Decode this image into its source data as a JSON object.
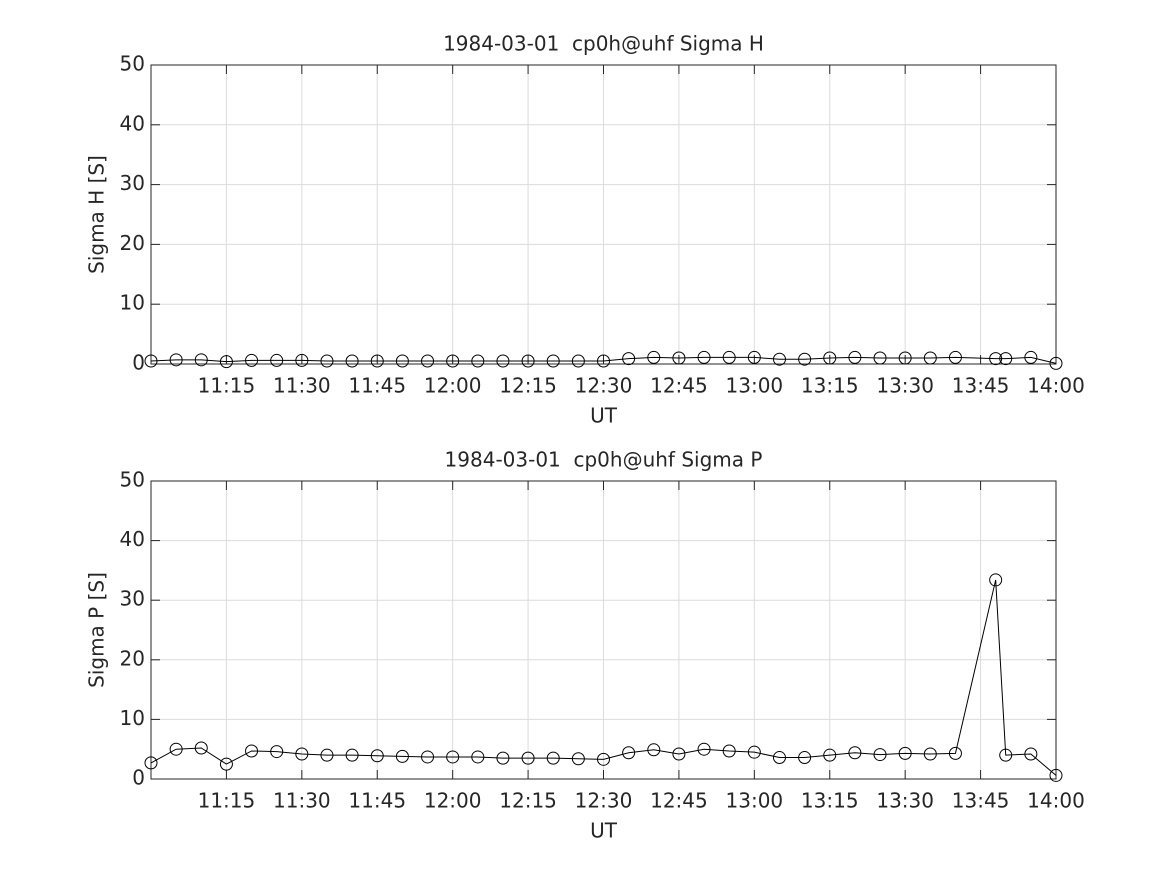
{
  "chart_data": [
    {
      "type": "line",
      "title": "1984-03-01  cp0h@uhf Sigma H",
      "xlabel": "UT",
      "ylabel": "Sigma H [S]",
      "color": "#000000",
      "grid": true,
      "x": [
        "11:00",
        "11:05",
        "11:10",
        "11:15",
        "11:20",
        "11:25",
        "11:30",
        "11:35",
        "11:40",
        "11:45",
        "11:50",
        "11:55",
        "12:00",
        "12:05",
        "12:10",
        "12:15",
        "12:20",
        "12:25",
        "12:30",
        "12:35",
        "12:40",
        "12:45",
        "12:50",
        "12:55",
        "13:00",
        "13:05",
        "13:10",
        "13:15",
        "13:20",
        "13:25",
        "13:30",
        "13:35",
        "13:40",
        "13:48",
        "13:50",
        "13:55",
        "14:00"
      ],
      "values": [
        0.5,
        0.7,
        0.7,
        0.4,
        0.6,
        0.6,
        0.6,
        0.5,
        0.5,
        0.5,
        0.5,
        0.5,
        0.5,
        0.5,
        0.5,
        0.5,
        0.5,
        0.5,
        0.5,
        0.9,
        1.1,
        1.0,
        1.1,
        1.1,
        1.1,
        0.8,
        0.8,
        1.0,
        1.1,
        1.0,
        1.0,
        1.0,
        1.1,
        0.9,
        0.9,
        1.1,
        0.1
      ],
      "xlim": [
        "11:00",
        "14:00"
      ],
      "xticks": [
        "11:15",
        "11:30",
        "11:45",
        "12:00",
        "12:15",
        "12:30",
        "12:45",
        "13:00",
        "13:15",
        "13:30",
        "13:45",
        "14:00"
      ],
      "ylim": [
        0,
        50
      ],
      "yticks": [
        0,
        10,
        20,
        30,
        40,
        50
      ]
    },
    {
      "type": "line",
      "title": "1984-03-01  cp0h@uhf Sigma P",
      "xlabel": "UT",
      "ylabel": "Sigma P [S]",
      "color": "#000000",
      "grid": true,
      "x": [
        "11:00",
        "11:05",
        "11:10",
        "11:15",
        "11:20",
        "11:25",
        "11:30",
        "11:35",
        "11:40",
        "11:45",
        "11:50",
        "11:55",
        "12:00",
        "12:05",
        "12:10",
        "12:15",
        "12:20",
        "12:25",
        "12:30",
        "12:35",
        "12:40",
        "12:45",
        "12:50",
        "12:55",
        "13:00",
        "13:05",
        "13:10",
        "13:15",
        "13:20",
        "13:25",
        "13:30",
        "13:35",
        "13:40",
        "13:48",
        "13:50",
        "13:55",
        "14:00"
      ],
      "values": [
        2.7,
        5.0,
        5.2,
        2.5,
        4.7,
        4.6,
        4.2,
        4.0,
        4.0,
        3.9,
        3.8,
        3.7,
        3.7,
        3.7,
        3.5,
        3.5,
        3.5,
        3.4,
        3.3,
        4.4,
        4.9,
        4.2,
        5.0,
        4.7,
        4.5,
        3.6,
        3.6,
        4.0,
        4.4,
        4.1,
        4.3,
        4.2,
        4.3,
        33.4,
        4.0,
        4.2,
        0.6
      ],
      "xlim": [
        "11:00",
        "14:00"
      ],
      "xticks": [
        "11:15",
        "11:30",
        "11:45",
        "12:00",
        "12:15",
        "12:30",
        "12:45",
        "13:00",
        "13:15",
        "13:30",
        "13:45",
        "14:00"
      ],
      "ylim": [
        0,
        50
      ],
      "yticks": [
        0,
        10,
        20,
        30,
        40,
        50
      ]
    }
  ]
}
